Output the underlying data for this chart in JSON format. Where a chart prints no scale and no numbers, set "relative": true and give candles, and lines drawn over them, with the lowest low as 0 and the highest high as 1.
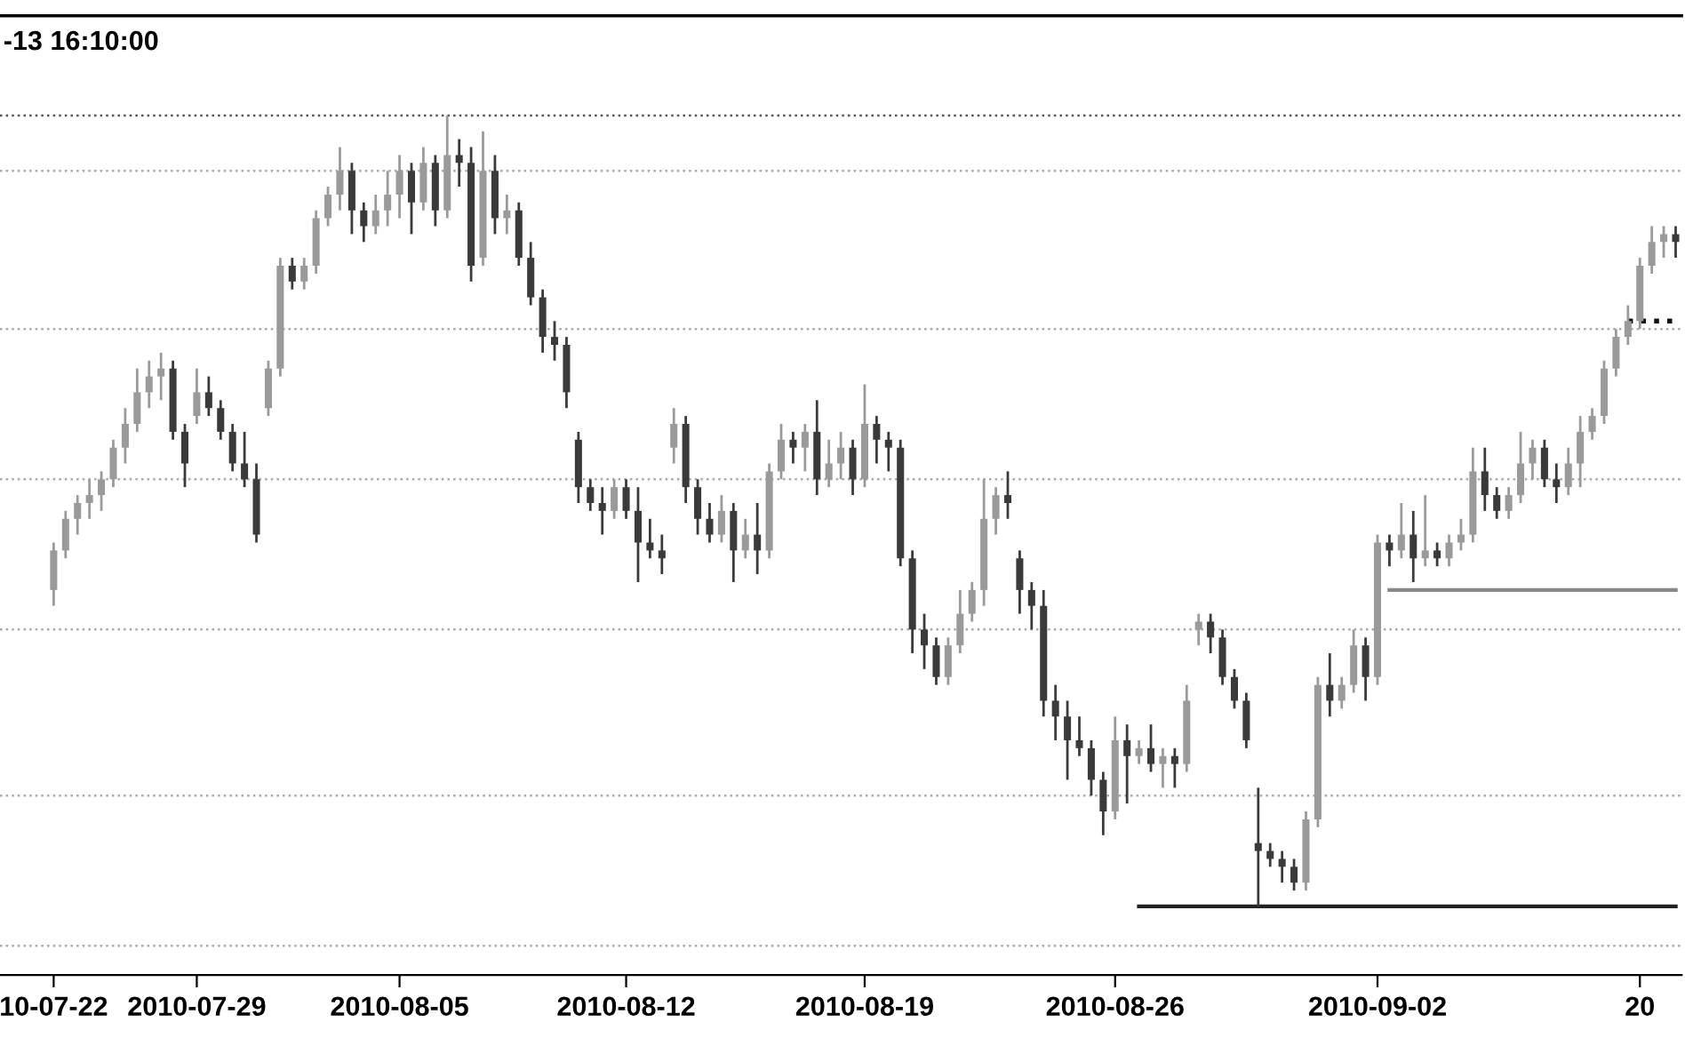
{
  "chart_data": {
    "type": "candlestick",
    "relative": true,
    "title": "-13 16:10:00",
    "colors": [
      "#9a9a9a",
      "#9a9a9a",
      "#9a9a9a",
      "#9a9a9a",
      "#9a9a9a",
      "#9a9a9a",
      "#9a9a9a",
      "#9a9a9a",
      "#9a9a9a",
      "#9a9a9a",
      "#3a3a3a",
      "#3a3a3a",
      "#9a9a9a",
      "#3a3a3a",
      "#3a3a3a",
      "#3a3a3a",
      "#3a3a3a",
      "#3a3a3a",
      "#9a9a9a",
      "#9a9a9a",
      "#3a3a3a",
      "#9a9a9a",
      "#9a9a9a",
      "#9a9a9a",
      "#9a9a9a",
      "#3a3a3a",
      "#3a3a3a",
      "#9a9a9a",
      "#9a9a9a",
      "#9a9a9a",
      "#3a3a3a",
      "#9a9a9a",
      "#3a3a3a",
      "#9a9a9a",
      "#3a3a3a",
      "#3a3a3a",
      "#9a9a9a",
      "#3a3a3a",
      "#9a9a9a",
      "#3a3a3a",
      "#3a3a3a",
      "#3a3a3a",
      "#3a3a3a",
      "#3a3a3a",
      "#3a3a3a",
      "#3a3a3a",
      "#3a3a3a",
      "#9a9a9a",
      "#3a3a3a",
      "#3a3a3a",
      "#3a3a3a",
      "#3a3a3a",
      "#9a9a9a",
      "#3a3a3a",
      "#3a3a3a",
      "#3a3a3a",
      "#9a9a9a",
      "#3a3a3a",
      "#9a9a9a",
      "#3a3a3a",
      "#9a9a9a",
      "#9a9a9a",
      "#3a3a3a",
      "#9a9a9a",
      "#3a3a3a",
      "#9a9a9a",
      "#9a9a9a",
      "#3a3a3a",
      "#9a9a9a",
      "#3a3a3a",
      "#3a3a3a",
      "#3a3a3a",
      "#3a3a3a",
      "#3a3a3a",
      "#3a3a3a",
      "#9a9a9a",
      "#9a9a9a",
      "#9a9a9a",
      "#9a9a9a",
      "#9a9a9a",
      "#3a3a3a",
      "#3a3a3a",
      "#3a3a3a",
      "#3a3a3a",
      "#3a3a3a",
      "#3a3a3a",
      "#3a3a3a",
      "#3a3a3a",
      "#3a3a3a",
      "#9a9a9a",
      "#3a3a3a",
      "#9a9a9a",
      "#3a3a3a",
      "#9a9a9a",
      "#3a3a3a",
      "#9a9a9a",
      "#9a9a9a",
      "#3a3a3a",
      "#3a3a3a",
      "#3a3a3a",
      "#3a3a3a",
      "#3a3a3a",
      "#3a3a3a",
      "#3a3a3a",
      "#3a3a3a",
      "#9a9a9a",
      "#9a9a9a",
      "#3a3a3a",
      "#9a9a9a",
      "#9a9a9a",
      "#3a3a3a",
      "#9a9a9a",
      "#3a3a3a",
      "#9a9a9a",
      "#3a3a3a",
      "#9a9a9a",
      "#3a3a3a",
      "#9a9a9a",
      "#9a9a9a",
      "#9a9a9a",
      "#3a3a3a",
      "#3a3a3a",
      "#9a9a9a",
      "#9a9a9a",
      "#9a9a9a",
      "#3a3a3a",
      "#3a3a3a",
      "#9a9a9a",
      "#9a9a9a",
      "#9a9a9a",
      "#9a9a9a",
      "#9a9a9a",
      "#9a9a9a",
      "#9a9a9a",
      "#9a9a9a",
      "#9a9a9a",
      "#3a3a3a"
    ],
    "categories": [
      "10-07-22",
      null,
      null,
      null,
      null,
      null,
      null,
      null,
      null,
      null,
      null,
      null,
      "2010-07-29",
      null,
      null,
      null,
      null,
      null,
      null,
      null,
      null,
      null,
      null,
      null,
      null,
      null,
      null,
      null,
      null,
      "2010-08-05",
      null,
      null,
      null,
      null,
      null,
      null,
      null,
      null,
      null,
      null,
      null,
      null,
      null,
      null,
      null,
      null,
      null,
      null,
      "2010-08-12",
      null,
      null,
      null,
      null,
      null,
      null,
      null,
      null,
      null,
      null,
      null,
      null,
      null,
      null,
      null,
      null,
      null,
      null,
      null,
      "2010-08-19",
      null,
      null,
      null,
      null,
      null,
      null,
      null,
      null,
      null,
      null,
      null,
      null,
      null,
      null,
      null,
      null,
      null,
      null,
      null,
      null,
      "2010-08-26",
      null,
      null,
      null,
      null,
      null,
      null,
      null,
      null,
      null,
      null,
      null,
      null,
      null,
      null,
      null,
      null,
      null,
      null,
      null,
      null,
      null,
      "2010-09-02",
      null,
      null,
      null,
      null,
      null,
      null,
      null,
      null,
      null,
      null,
      null,
      null,
      null,
      null,
      null,
      null,
      null,
      null,
      null,
      null,
      null,
      "20",
      null,
      null,
      null
    ],
    "ohlc": [
      [
        0.4,
        0.46,
        0.38,
        0.45
      ],
      [
        0.45,
        0.5,
        0.44,
        0.49
      ],
      [
        0.49,
        0.52,
        0.47,
        0.51
      ],
      [
        0.51,
        0.54,
        0.49,
        0.52
      ],
      [
        0.52,
        0.55,
        0.5,
        0.54
      ],
      [
        0.54,
        0.59,
        0.53,
        0.58
      ],
      [
        0.58,
        0.63,
        0.56,
        0.61
      ],
      [
        0.61,
        0.68,
        0.6,
        0.65
      ],
      [
        0.65,
        0.69,
        0.63,
        0.67
      ],
      [
        0.67,
        0.7,
        0.64,
        0.68
      ],
      [
        0.68,
        0.69,
        0.59,
        0.6
      ],
      [
        0.6,
        0.61,
        0.53,
        0.56
      ],
      [
        0.62,
        0.68,
        0.61,
        0.65
      ],
      [
        0.65,
        0.67,
        0.62,
        0.63
      ],
      [
        0.63,
        0.64,
        0.59,
        0.6
      ],
      [
        0.6,
        0.61,
        0.55,
        0.56
      ],
      [
        0.56,
        0.6,
        0.53,
        0.54
      ],
      [
        0.54,
        0.56,
        0.46,
        0.47
      ],
      [
        0.63,
        0.69,
        0.62,
        0.68
      ],
      [
        0.68,
        0.82,
        0.67,
        0.81
      ],
      [
        0.81,
        0.82,
        0.78,
        0.79
      ],
      [
        0.79,
        0.82,
        0.78,
        0.81
      ],
      [
        0.81,
        0.88,
        0.8,
        0.87
      ],
      [
        0.87,
        0.91,
        0.86,
        0.9
      ],
      [
        0.9,
        0.96,
        0.88,
        0.93
      ],
      [
        0.93,
        0.94,
        0.85,
        0.88
      ],
      [
        0.88,
        0.89,
        0.84,
        0.86
      ],
      [
        0.86,
        0.9,
        0.85,
        0.88
      ],
      [
        0.88,
        0.93,
        0.86,
        0.9
      ],
      [
        0.9,
        0.95,
        0.87,
        0.93
      ],
      [
        0.93,
        0.94,
        0.85,
        0.89
      ],
      [
        0.89,
        0.96,
        0.88,
        0.94
      ],
      [
        0.94,
        0.95,
        0.86,
        0.88
      ],
      [
        0.88,
        1.0,
        0.87,
        0.95
      ],
      [
        0.95,
        0.97,
        0.91,
        0.94
      ],
      [
        0.94,
        0.96,
        0.79,
        0.81
      ],
      [
        0.82,
        0.98,
        0.81,
        0.93
      ],
      [
        0.93,
        0.95,
        0.85,
        0.87
      ],
      [
        0.87,
        0.9,
        0.85,
        0.88
      ],
      [
        0.88,
        0.89,
        0.81,
        0.82
      ],
      [
        0.82,
        0.84,
        0.76,
        0.77
      ],
      [
        0.77,
        0.78,
        0.7,
        0.72
      ],
      [
        0.72,
        0.74,
        0.69,
        0.71
      ],
      [
        0.71,
        0.72,
        0.63,
        0.65
      ],
      [
        0.59,
        0.6,
        0.51,
        0.53
      ],
      [
        0.53,
        0.54,
        0.5,
        0.51
      ],
      [
        0.51,
        0.53,
        0.47,
        0.5
      ],
      [
        0.5,
        0.54,
        0.49,
        0.53
      ],
      [
        0.53,
        0.54,
        0.49,
        0.5
      ],
      [
        0.5,
        0.53,
        0.41,
        0.46
      ],
      [
        0.46,
        0.49,
        0.44,
        0.45
      ],
      [
        0.45,
        0.47,
        0.42,
        0.44
      ],
      [
        0.58,
        0.63,
        0.56,
        0.61
      ],
      [
        0.61,
        0.62,
        0.51,
        0.53
      ],
      [
        0.53,
        0.54,
        0.47,
        0.49
      ],
      [
        0.49,
        0.51,
        0.46,
        0.47
      ],
      [
        0.47,
        0.52,
        0.46,
        0.5
      ],
      [
        0.5,
        0.51,
        0.41,
        0.45
      ],
      [
        0.45,
        0.49,
        0.44,
        0.47
      ],
      [
        0.47,
        0.51,
        0.42,
        0.45
      ],
      [
        0.45,
        0.56,
        0.44,
        0.55
      ],
      [
        0.55,
        0.61,
        0.54,
        0.59
      ],
      [
        0.59,
        0.6,
        0.56,
        0.58
      ],
      [
        0.58,
        0.61,
        0.55,
        0.6
      ],
      [
        0.6,
        0.64,
        0.52,
        0.54
      ],
      [
        0.54,
        0.59,
        0.53,
        0.56
      ],
      [
        0.56,
        0.6,
        0.54,
        0.58
      ],
      [
        0.58,
        0.59,
        0.52,
        0.54
      ],
      [
        0.54,
        0.66,
        0.53,
        0.61
      ],
      [
        0.61,
        0.62,
        0.56,
        0.59
      ],
      [
        0.59,
        0.6,
        0.55,
        0.58
      ],
      [
        0.58,
        0.59,
        0.43,
        0.44
      ],
      [
        0.44,
        0.45,
        0.32,
        0.35
      ],
      [
        0.35,
        0.37,
        0.3,
        0.33
      ],
      [
        0.33,
        0.34,
        0.28,
        0.29
      ],
      [
        0.29,
        0.34,
        0.28,
        0.33
      ],
      [
        0.33,
        0.4,
        0.32,
        0.37
      ],
      [
        0.37,
        0.41,
        0.36,
        0.4
      ],
      [
        0.4,
        0.54,
        0.38,
        0.49
      ],
      [
        0.49,
        0.53,
        0.47,
        0.52
      ],
      [
        0.52,
        0.55,
        0.49,
        0.51
      ],
      [
        0.44,
        0.45,
        0.37,
        0.4
      ],
      [
        0.4,
        0.41,
        0.35,
        0.38
      ],
      [
        0.38,
        0.4,
        0.24,
        0.26
      ],
      [
        0.26,
        0.28,
        0.21,
        0.24
      ],
      [
        0.24,
        0.26,
        0.16,
        0.21
      ],
      [
        0.21,
        0.24,
        0.19,
        0.2
      ],
      [
        0.2,
        0.21,
        0.14,
        0.16
      ],
      [
        0.16,
        0.17,
        0.09,
        0.12
      ],
      [
        0.12,
        0.24,
        0.11,
        0.21
      ],
      [
        0.21,
        0.23,
        0.13,
        0.19
      ],
      [
        0.19,
        0.21,
        0.18,
        0.2
      ],
      [
        0.2,
        0.23,
        0.17,
        0.18
      ],
      [
        0.18,
        0.2,
        0.15,
        0.19
      ],
      [
        0.19,
        0.2,
        0.15,
        0.18
      ],
      [
        0.18,
        0.28,
        0.17,
        0.26
      ],
      [
        0.35,
        0.37,
        0.33,
        0.36
      ],
      [
        0.36,
        0.37,
        0.32,
        0.34
      ],
      [
        0.34,
        0.35,
        0.28,
        0.29
      ],
      [
        0.29,
        0.3,
        0.25,
        0.26
      ],
      [
        0.26,
        0.27,
        0.2,
        0.21
      ],
      [
        0.08,
        0.15,
        0.0,
        0.07
      ],
      [
        0.07,
        0.08,
        0.05,
        0.06
      ],
      [
        0.06,
        0.07,
        0.03,
        0.05
      ],
      [
        0.05,
        0.06,
        0.02,
        0.03
      ],
      [
        0.03,
        0.12,
        0.02,
        0.11
      ],
      [
        0.11,
        0.29,
        0.1,
        0.28
      ],
      [
        0.28,
        0.32,
        0.24,
        0.26
      ],
      [
        0.26,
        0.29,
        0.25,
        0.28
      ],
      [
        0.28,
        0.35,
        0.27,
        0.33
      ],
      [
        0.33,
        0.34,
        0.26,
        0.29
      ],
      [
        0.29,
        0.47,
        0.28,
        0.46
      ],
      [
        0.46,
        0.47,
        0.43,
        0.45
      ],
      [
        0.45,
        0.51,
        0.44,
        0.47
      ],
      [
        0.47,
        0.5,
        0.41,
        0.44
      ],
      [
        0.44,
        0.52,
        0.43,
        0.45
      ],
      [
        0.45,
        0.46,
        0.43,
        0.44
      ],
      [
        0.44,
        0.47,
        0.43,
        0.46
      ],
      [
        0.46,
        0.49,
        0.45,
        0.47
      ],
      [
        0.47,
        0.58,
        0.46,
        0.55
      ],
      [
        0.55,
        0.58,
        0.5,
        0.52
      ],
      [
        0.52,
        0.53,
        0.49,
        0.5
      ],
      [
        0.5,
        0.53,
        0.49,
        0.52
      ],
      [
        0.52,
        0.6,
        0.51,
        0.56
      ],
      [
        0.56,
        0.59,
        0.54,
        0.58
      ],
      [
        0.58,
        0.59,
        0.53,
        0.54
      ],
      [
        0.54,
        0.56,
        0.51,
        0.53
      ],
      [
        0.53,
        0.58,
        0.52,
        0.56
      ],
      [
        0.56,
        0.62,
        0.53,
        0.6
      ],
      [
        0.6,
        0.63,
        0.59,
        0.62
      ],
      [
        0.62,
        0.69,
        0.61,
        0.68
      ],
      [
        0.68,
        0.73,
        0.67,
        0.72
      ],
      [
        0.72,
        0.76,
        0.71,
        0.74
      ],
      [
        0.74,
        0.82,
        0.73,
        0.81
      ],
      [
        0.81,
        0.86,
        0.8,
        0.84
      ],
      [
        0.84,
        0.86,
        0.82,
        0.85
      ],
      [
        0.85,
        0.86,
        0.82,
        0.84
      ]
    ],
    "ref_lines": [
      {
        "axis": "y",
        "value": 1.0,
        "color": "#555555",
        "line_style": "dotted"
      },
      {
        "axis": "y",
        "value": 0.93,
        "color": "#aaaaaa",
        "line_style": "dotted"
      },
      {
        "axis": "y",
        "value": 0.73,
        "color": "#aaaaaa",
        "line_style": "dotted"
      },
      {
        "axis": "y",
        "value": 0.54,
        "color": "#aaaaaa",
        "line_style": "dotted"
      },
      {
        "axis": "y",
        "value": 0.35,
        "color": "#aaaaaa",
        "line_style": "dotted"
      },
      {
        "axis": "y",
        "value": 0.14,
        "color": "#aaaaaa",
        "line_style": "dotted"
      },
      {
        "axis": "y",
        "value": -0.05,
        "color": "#aaaaaa",
        "line_style": "dotted"
      }
    ],
    "series": [
      {
        "type": "line",
        "color": "#222222",
        "line_style": "solid",
        "values": [
          null,
          null,
          null,
          null,
          null,
          null,
          null,
          null,
          null,
          null,
          null,
          null,
          null,
          null,
          null,
          null,
          null,
          null,
          null,
          null,
          null,
          null,
          null,
          null,
          null,
          null,
          null,
          null,
          null,
          null,
          null,
          null,
          null,
          null,
          null,
          null,
          null,
          null,
          null,
          null,
          null,
          null,
          null,
          null,
          null,
          null,
          null,
          null,
          null,
          null,
          null,
          null,
          null,
          null,
          null,
          null,
          null,
          null,
          null,
          null,
          null,
          null,
          null,
          null,
          null,
          null,
          null,
          null,
          null,
          null,
          null,
          null,
          null,
          null,
          null,
          null,
          null,
          null,
          null,
          null,
          null,
          null,
          null,
          null,
          null,
          null,
          null,
          null,
          null,
          null,
          null,
          0.0,
          0.0,
          0.0,
          0.0,
          0.0,
          0.0,
          0.0,
          0.0,
          0.0,
          0.0,
          0.0,
          0.0,
          0.0,
          0.0,
          0.0,
          0.0,
          0.0,
          0.0,
          0.0,
          0.0,
          0.0,
          0.0,
          0.0,
          0.0,
          0.0,
          0.0,
          0.0,
          0.0,
          0.0,
          0.0,
          0.0,
          0.0,
          0.0,
          0.0,
          0.0,
          0.0,
          0.0,
          0.0,
          0.0,
          0.0,
          0.0,
          0.0,
          0.0,
          0.0,
          0.0,
          0.0
        ]
      },
      {
        "type": "line",
        "color": "#888888",
        "line_style": "solid",
        "values": [
          null,
          null,
          null,
          null,
          null,
          null,
          null,
          null,
          null,
          null,
          null,
          null,
          null,
          null,
          null,
          null,
          null,
          null,
          null,
          null,
          null,
          null,
          null,
          null,
          null,
          null,
          null,
          null,
          null,
          null,
          null,
          null,
          null,
          null,
          null,
          null,
          null,
          null,
          null,
          null,
          null,
          null,
          null,
          null,
          null,
          null,
          null,
          null,
          null,
          null,
          null,
          null,
          null,
          null,
          null,
          null,
          null,
          null,
          null,
          null,
          null,
          null,
          null,
          null,
          null,
          null,
          null,
          null,
          null,
          null,
          null,
          null,
          null,
          null,
          null,
          null,
          null,
          null,
          null,
          null,
          null,
          null,
          null,
          null,
          null,
          null,
          null,
          null,
          null,
          null,
          null,
          null,
          null,
          null,
          null,
          null,
          null,
          null,
          null,
          null,
          null,
          null,
          null,
          null,
          null,
          null,
          null,
          null,
          null,
          null,
          null,
          null,
          0.4,
          0.4,
          0.4,
          0.4,
          0.4,
          0.4,
          0.4,
          0.4,
          0.4,
          0.4,
          0.4,
          0.4,
          0.4,
          0.4,
          0.4,
          0.4,
          0.4,
          0.4,
          0.4,
          0.4,
          0.4,
          0.4,
          0.4,
          0.4,
          0.4
        ]
      },
      {
        "type": "line",
        "color": "#111111",
        "line_style": "dotted",
        "values": [
          null,
          null,
          null,
          null,
          null,
          null,
          null,
          null,
          null,
          null,
          null,
          null,
          null,
          null,
          null,
          null,
          null,
          null,
          null,
          null,
          null,
          null,
          null,
          null,
          null,
          null,
          null,
          null,
          null,
          null,
          null,
          null,
          null,
          null,
          null,
          null,
          null,
          null,
          null,
          null,
          null,
          null,
          null,
          null,
          null,
          null,
          null,
          null,
          null,
          null,
          null,
          null,
          null,
          null,
          null,
          null,
          null,
          null,
          null,
          null,
          null,
          null,
          null,
          null,
          null,
          null,
          null,
          null,
          null,
          null,
          null,
          null,
          null,
          null,
          null,
          null,
          null,
          null,
          null,
          null,
          null,
          null,
          null,
          null,
          null,
          null,
          null,
          null,
          null,
          null,
          null,
          null,
          null,
          null,
          null,
          null,
          null,
          null,
          null,
          null,
          null,
          null,
          null,
          null,
          null,
          null,
          null,
          null,
          null,
          null,
          null,
          null,
          null,
          null,
          null,
          null,
          null,
          null,
          null,
          null,
          null,
          null,
          null,
          null,
          null,
          null,
          null,
          null,
          null,
          null,
          null,
          null,
          0.74,
          0.74,
          0.74,
          0.74,
          0.74
        ]
      }
    ]
  }
}
